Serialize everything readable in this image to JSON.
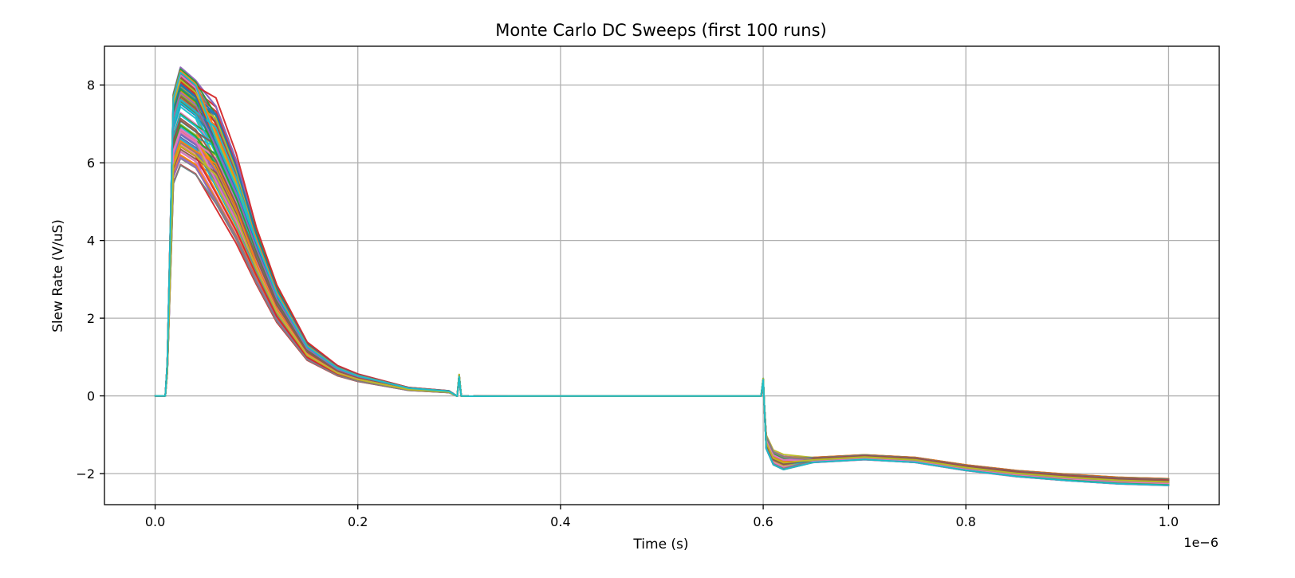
{
  "chart_data": {
    "type": "line",
    "title": "Monte Carlo DC Sweeps (first 100 runs)",
    "xlabel": "Time (s)",
    "ylabel": "Slew Rate (V/uS)",
    "x_offset_text": "1e−6",
    "xlim": [
      -5e-08,
      1.05e-06
    ],
    "ylim": [
      -2.8,
      9.0
    ],
    "xticks": [
      0,
      2e-07,
      4e-07,
      6e-07,
      8e-07,
      1e-06
    ],
    "xtick_labels": [
      "0.0",
      "0.2",
      "0.4",
      "0.6",
      "0.8",
      "1.0"
    ],
    "yticks": [
      -2,
      0,
      2,
      4,
      6,
      8
    ],
    "ytick_labels": [
      "−2",
      "0",
      "2",
      "4",
      "6",
      "8"
    ],
    "grid": true,
    "legend": "none",
    "colors": [
      "#1f77b4",
      "#ff7f0e",
      "#2ca02c",
      "#d62728",
      "#9467bd",
      "#8c564b",
      "#e377c2",
      "#7f7f7f",
      "#bcbd22",
      "#17becf"
    ],
    "series_peak_range": [
      5.9,
      8.5
    ],
    "series_count": 100,
    "representative_series": [
      {
        "x": [
          0,
          1e-08,
          1.2e-08,
          1.8e-08,
          2.5e-08,
          4e-08,
          6e-08,
          8e-08,
          1e-07,
          1.2e-07,
          1.5e-07,
          1.8e-07,
          2e-07,
          2.5e-07,
          2.9e-07,
          2.98e-07,
          3e-07,
          3.02e-07,
          3.1e-07,
          3.5e-07,
          4e-07,
          5e-07,
          5.98e-07,
          6e-07,
          6.01e-07,
          6.03e-07,
          6.1e-07,
          6.2e-07,
          6.5e-07,
          7e-07,
          7.5e-07,
          8e-07,
          8.5e-07,
          9e-07,
          9.5e-07,
          1e-06
        ],
        "y_profile": [
          0,
          0,
          0.1,
          0.92,
          1.0,
          0.96,
          0.86,
          0.7,
          0.5,
          0.33,
          0.16,
          0.09,
          0.065,
          0.025,
          0.015,
          -0.01,
          0.05,
          -0.005,
          -0.01,
          -0.005,
          -0.005,
          -0.005,
          -0.005,
          0.05,
          -0.2,
          -1.2,
          -1.6,
          -1.72,
          -1.65,
          -1.58,
          -1.65,
          -1.85,
          -2.0,
          -2.1,
          -2.18,
          -2.22
        ]
      }
    ]
  }
}
